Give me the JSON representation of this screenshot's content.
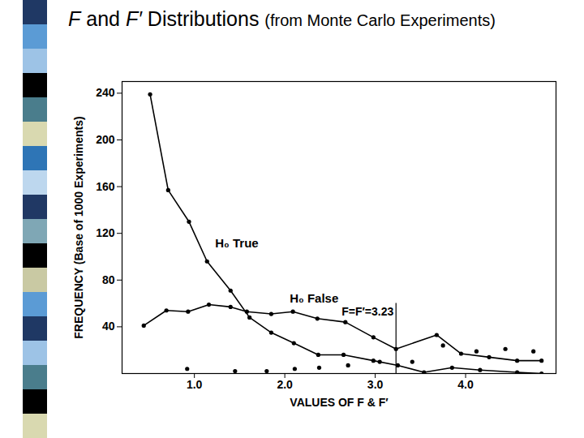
{
  "chart_data": {
    "type": "line",
    "title": "F and F′ Distributions",
    "subtitle": "(from Monte Carlo Experiments)",
    "x_label": "VALUES OF F & F′",
    "y_label": "FREQUENCY (Base of 1000 Experiments)",
    "xlim": [
      0.2,
      5.0
    ],
    "xticks": [
      {
        "value": 1,
        "label": "1.0"
      },
      {
        "value": 2,
        "label": "2.0"
      },
      {
        "value": 3,
        "label": "3.0"
      },
      {
        "value": 4,
        "label": "4.0"
      }
    ],
    "ylim": [
      0,
      250
    ],
    "yticks": [
      40,
      80,
      120,
      160,
      200,
      240
    ],
    "grid": false,
    "series": [
      {
        "name": "H₀ True",
        "type": "line",
        "color": "#000000",
        "marker": "circle",
        "x": [
          0.51,
          0.71,
          0.94,
          1.14,
          1.4,
          1.61,
          1.85,
          2.1,
          2.37,
          2.65,
          2.98,
          3.25,
          3.54,
          3.85,
          4.16,
          4.57,
          4.84
        ],
        "values": [
          239,
          157,
          130,
          96,
          71,
          48,
          35,
          26,
          16,
          16,
          11,
          7,
          1,
          5,
          3,
          1,
          0
        ]
      },
      {
        "name": "H₀ False",
        "type": "line",
        "color": "#000000",
        "marker": "circle",
        "x": [
          0.44,
          0.69,
          0.93,
          1.16,
          1.4,
          1.58,
          1.85,
          2.09,
          2.36,
          2.67,
          2.98,
          3.23,
          3.68,
          3.95,
          4.26,
          4.57,
          4.84
        ],
        "values": [
          41,
          54,
          53,
          59,
          57,
          53,
          51,
          53,
          47,
          44,
          31,
          21,
          33,
          17,
          14,
          11,
          11
        ]
      },
      {
        "name": null,
        "type": "scatter",
        "color": "#000000",
        "marker": "circle",
        "x": [
          0.92,
          1.45,
          1.8,
          2.11,
          2.38,
          2.7,
          3.05,
          3.41,
          3.75,
          4.12,
          4.44,
          4.75
        ],
        "values": [
          4,
          2,
          2,
          4,
          5,
          7,
          10,
          10,
          24,
          19,
          21,
          19
        ]
      }
    ],
    "annotations": [
      {
        "text": "F=F′=3.23",
        "x": 3.23,
        "y": 60
      }
    ]
  }
}
